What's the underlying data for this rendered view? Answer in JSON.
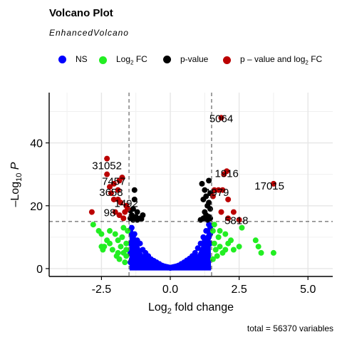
{
  "title": "Volcano Plot",
  "subtitle": "EnhancedVolcano",
  "legend": [
    {
      "label": "NS",
      "sub": "",
      "tail": "",
      "color": "#0000ff"
    },
    {
      "label": "Log",
      "sub": "2",
      "tail": " FC",
      "color": "#22ee22"
    },
    {
      "label": "p-value",
      "sub": "",
      "tail": "",
      "color": "#000000"
    },
    {
      "label": "p – value and log",
      "sub": "2",
      "tail": " FC",
      "color": "#bb0000"
    }
  ],
  "caption": "total = 56370 variables",
  "chart_data": {
    "type": "scatter",
    "title": "Volcano Plot",
    "xlabel": "Log2 fold change",
    "ylabel": "–Log10 P",
    "xlim": [
      -4.4,
      5.9
    ],
    "ylim": [
      -2.5,
      56
    ],
    "xticks": [
      -2.5,
      0.0,
      2.5,
      5.0
    ],
    "xtick_labels": [
      "-2.5",
      "0.0",
      "2.5",
      "5.0"
    ],
    "yticks": [
      0,
      20,
      40
    ],
    "ytick_labels": [
      "0",
      "20",
      "40"
    ],
    "fc_cutoff": 1.5,
    "p_cutoff_y": 15,
    "grid": true,
    "series": [
      {
        "name": "NS",
        "color": "#0000ff",
        "points": [
          [
            -1.4,
            13
          ],
          [
            -1.3,
            11
          ],
          [
            -1.2,
            9
          ],
          [
            -1.1,
            8
          ],
          [
            -1.0,
            6
          ],
          [
            -0.9,
            5
          ],
          [
            -0.8,
            4
          ],
          [
            -0.7,
            3
          ],
          [
            -0.6,
            2.5
          ],
          [
            -0.5,
            2
          ],
          [
            -0.4,
            1.5
          ],
          [
            -0.3,
            1
          ],
          [
            -0.2,
            0.6
          ],
          [
            -0.1,
            0.3
          ],
          [
            0.0,
            0.2
          ],
          [
            0.1,
            0.3
          ],
          [
            0.2,
            0.6
          ],
          [
            0.3,
            1
          ],
          [
            0.4,
            1.5
          ],
          [
            0.5,
            2
          ],
          [
            0.6,
            2.6
          ],
          [
            0.7,
            3.2
          ],
          [
            0.8,
            4
          ],
          [
            0.9,
            5
          ],
          [
            1.0,
            6.5
          ],
          [
            1.1,
            8
          ],
          [
            1.2,
            10
          ],
          [
            1.3,
            12
          ],
          [
            1.4,
            14
          ],
          [
            -1.45,
            2
          ],
          [
            -1.45,
            5
          ],
          [
            -1.45,
            8
          ],
          [
            -1.4,
            3
          ],
          [
            -1.35,
            6
          ],
          [
            -1.3,
            2
          ],
          [
            -1.25,
            5
          ],
          [
            -1.2,
            3
          ],
          [
            -1.15,
            1
          ],
          [
            -1.1,
            4
          ],
          [
            -1.05,
            2
          ],
          [
            -0.95,
            1
          ],
          [
            -0.85,
            2
          ],
          [
            -0.75,
            1
          ],
          [
            -0.65,
            1.2
          ],
          [
            -0.55,
            0.8
          ],
          [
            -0.45,
            0.7
          ],
          [
            -0.35,
            0.5
          ],
          [
            0.35,
            0.5
          ],
          [
            0.45,
            0.7
          ],
          [
            0.55,
            0.9
          ],
          [
            0.65,
            1
          ],
          [
            0.75,
            1.5
          ],
          [
            0.85,
            2
          ],
          [
            0.95,
            1.5
          ],
          [
            1.05,
            2
          ],
          [
            1.15,
            3
          ],
          [
            1.25,
            4
          ],
          [
            1.35,
            5
          ],
          [
            1.45,
            8
          ],
          [
            1.45,
            11
          ],
          [
            1.4,
            3
          ],
          [
            1.3,
            7
          ],
          [
            1.2,
            5
          ],
          [
            1.1,
            2.5
          ],
          [
            -1.45,
            12
          ],
          [
            -1.4,
            11
          ],
          [
            -1.35,
            10
          ],
          [
            -1.3,
            8
          ],
          [
            1.35,
            9
          ],
          [
            1.4,
            10
          ],
          [
            1.45,
            13
          ],
          [
            1.25,
            9
          ],
          [
            -1.2,
            6
          ],
          [
            1.15,
            6
          ]
        ]
      },
      {
        "name": "Log2 FC",
        "color": "#22ee22",
        "points": [
          [
            -2.8,
            14
          ],
          [
            -2.6,
            12
          ],
          [
            -2.5,
            11
          ],
          [
            -2.4,
            7
          ],
          [
            -2.3,
            9
          ],
          [
            -2.2,
            8
          ],
          [
            -2.1,
            6
          ],
          [
            -2.0,
            11
          ],
          [
            -1.95,
            4
          ],
          [
            -1.9,
            9
          ],
          [
            -1.85,
            3
          ],
          [
            -1.8,
            7
          ],
          [
            -1.75,
            10
          ],
          [
            -1.7,
            5
          ],
          [
            -1.65,
            2
          ],
          [
            -1.6,
            8
          ],
          [
            -1.55,
            12
          ],
          [
            -1.6,
            4
          ],
          [
            -2.5,
            7
          ],
          [
            -2.2,
            12
          ],
          [
            -1.7,
            13
          ],
          [
            -2.45,
            6
          ],
          [
            -1.9,
            5
          ],
          [
            -1.6,
            6
          ],
          [
            1.55,
            12
          ],
          [
            1.6,
            8
          ],
          [
            1.65,
            6
          ],
          [
            1.7,
            4
          ],
          [
            1.75,
            10
          ],
          [
            1.8,
            7
          ],
          [
            1.9,
            5
          ],
          [
            2.0,
            11
          ],
          [
            2.1,
            8
          ],
          [
            2.2,
            9
          ],
          [
            2.3,
            6
          ],
          [
            2.5,
            7
          ],
          [
            2.6,
            13
          ],
          [
            3.1,
            9
          ],
          [
            3.2,
            7
          ],
          [
            3.3,
            5
          ],
          [
            3.75,
            5
          ],
          [
            1.6,
            14
          ],
          [
            1.8,
            12
          ],
          [
            2.0,
            6
          ],
          [
            1.55,
            3
          ]
        ]
      },
      {
        "name": "p-value",
        "color": "#000000",
        "points": [
          [
            -1.45,
            16
          ],
          [
            -1.4,
            17
          ],
          [
            -1.35,
            19
          ],
          [
            -1.3,
            22
          ],
          [
            -1.25,
            16.5
          ],
          [
            -1.2,
            18
          ],
          [
            -1.1,
            16
          ],
          [
            -1.0,
            17
          ],
          [
            -1.3,
            25
          ],
          [
            -1.35,
            15.5
          ],
          [
            -1.45,
            18.5
          ],
          [
            -1.2,
            15.5
          ],
          [
            -1.05,
            15.8
          ],
          [
            1.2,
            16
          ],
          [
            1.25,
            18
          ],
          [
            1.3,
            17
          ],
          [
            1.35,
            20
          ],
          [
            1.4,
            21
          ],
          [
            1.3,
            23
          ],
          [
            1.45,
            19
          ],
          [
            1.4,
            16.5
          ],
          [
            1.35,
            15.5
          ],
          [
            1.15,
            27
          ],
          [
            1.25,
            25
          ],
          [
            1.4,
            28
          ],
          [
            1.45,
            24
          ],
          [
            1.1,
            15.5
          ],
          [
            1.2,
            22
          ],
          [
            1.45,
            16
          ]
        ]
      },
      {
        "name": "p - value and log2 FC",
        "color": "#bb0000",
        "points": [
          [
            -2.3,
            35
          ],
          [
            -2.3,
            30
          ],
          [
            -2.05,
            27
          ],
          [
            -1.85,
            28
          ],
          [
            -1.75,
            29
          ],
          [
            -2.2,
            26
          ],
          [
            -2.15,
            24
          ],
          [
            -2.05,
            22
          ],
          [
            -1.9,
            22
          ],
          [
            -1.8,
            21
          ],
          [
            -1.6,
            20
          ],
          [
            -1.65,
            18
          ],
          [
            -1.7,
            16
          ],
          [
            -2.0,
            18
          ],
          [
            -1.85,
            17
          ],
          [
            -2.85,
            18
          ],
          [
            -1.55,
            19
          ],
          [
            -1.9,
            25
          ],
          [
            1.85,
            48
          ],
          [
            1.95,
            30
          ],
          [
            2.05,
            31
          ],
          [
            1.9,
            25
          ],
          [
            1.6,
            25
          ],
          [
            1.75,
            25
          ],
          [
            2.1,
            22
          ],
          [
            1.85,
            18
          ],
          [
            2.3,
            18
          ],
          [
            2.5,
            15.5
          ],
          [
            2.1,
            16
          ],
          [
            3.75,
            27
          ],
          [
            1.55,
            23
          ]
        ]
      }
    ],
    "labels": [
      {
        "text": "5064",
        "x": 1.85,
        "y": 48
      },
      {
        "text": "31052",
        "x": -2.3,
        "y": 33
      },
      {
        "text": "1916",
        "x": 2.05,
        "y": 30.5
      },
      {
        "text": "17015",
        "x": 3.6,
        "y": 26.5
      },
      {
        "text": "7457",
        "x": -2.05,
        "y": 28
      },
      {
        "text": "3658",
        "x": -2.15,
        "y": 24.5
      },
      {
        "text": "1979",
        "x": 1.7,
        "y": 24.5
      },
      {
        "text": "1492",
        "x": -1.6,
        "y": 21
      },
      {
        "text": "98",
        "x": -2.2,
        "y": 18
      },
      {
        "text": "5818",
        "x": 2.4,
        "y": 15.5
      }
    ]
  }
}
